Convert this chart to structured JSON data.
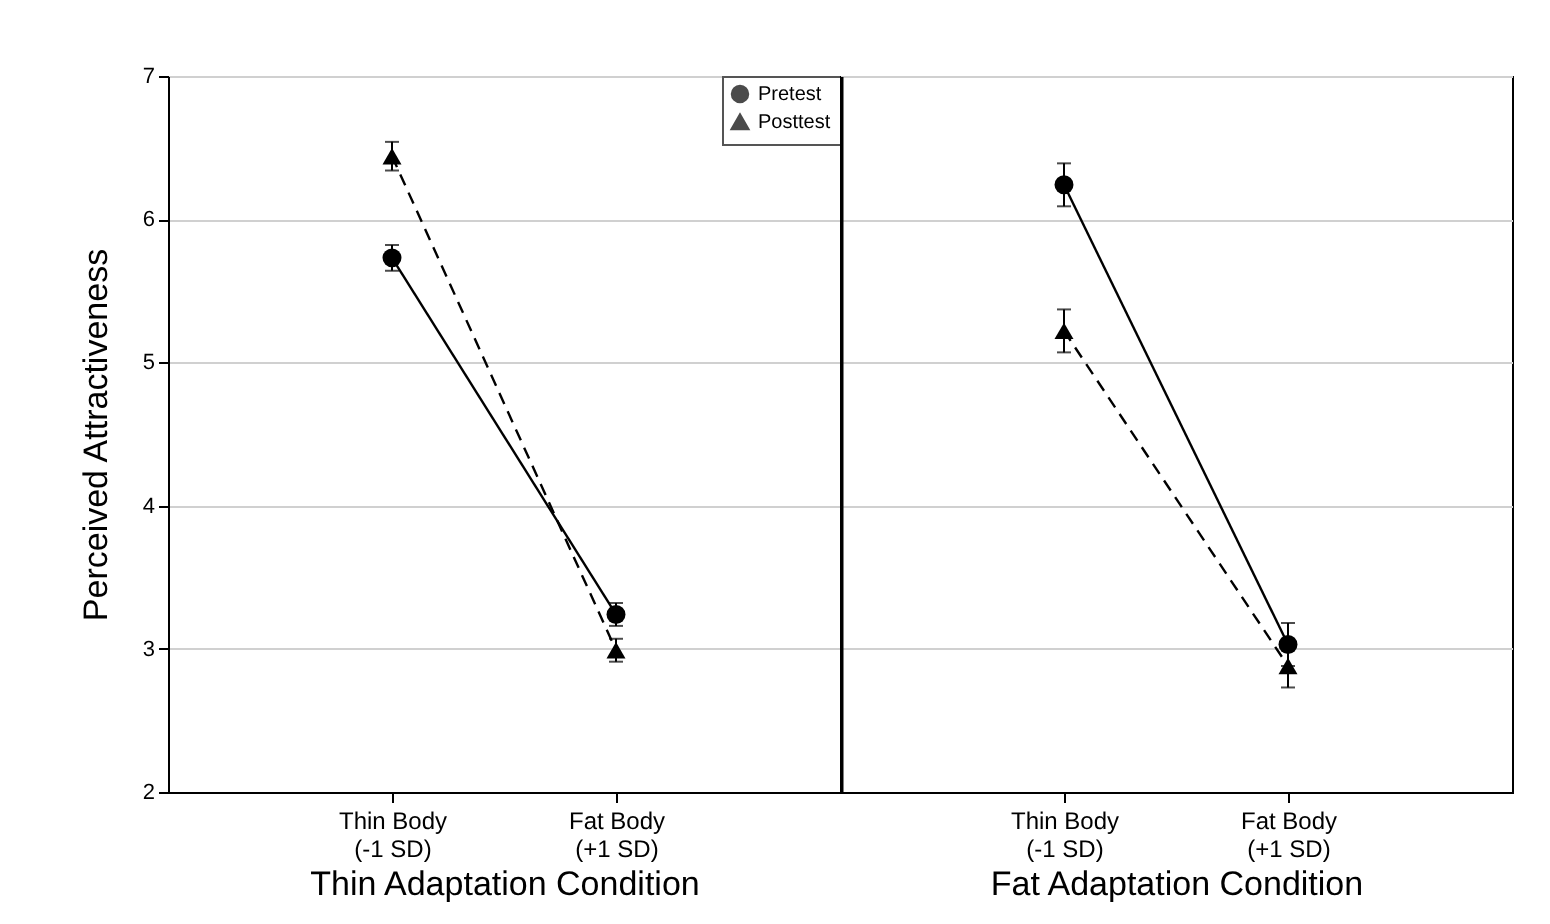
{
  "chart_data": [
    {
      "type": "line",
      "xlabel": "Thin Adaptation Condition",
      "ylabel": "Perceived Attractiveness",
      "categories": [
        "Thin Body\n(-1 SD)",
        "Fat Body\n(+1 SD)"
      ],
      "ylim": [
        2,
        7
      ],
      "yticks": [
        2,
        3,
        4,
        5,
        6,
        7
      ],
      "grid": "y",
      "legend": "top right",
      "series": [
        {
          "name": "Pretest",
          "color": "#000000",
          "values": [
            5.73,
            3.24
          ],
          "errors": [
            0.09,
            0.08
          ],
          "marker": "circle",
          "line_style": "solid"
        },
        {
          "name": "Posttest",
          "color": "#000000",
          "values": [
            6.44,
            2.99
          ],
          "errors": [
            0.1,
            0.08
          ],
          "marker": "triangle",
          "line_style": "dashed"
        }
      ]
    },
    {
      "type": "line",
      "xlabel": "Fat Adaptation Condition",
      "categories": [
        "Thin Body\n(-1 SD)",
        "Fat Body\n(+1 SD)"
      ],
      "ylim": [
        2,
        7
      ],
      "yticks": [
        2,
        3,
        4,
        5,
        6,
        7
      ],
      "grid": "y",
      "tick_labels": "x",
      "series": [
        {
          "color": "#000000",
          "values": [
            6.24,
            3.03
          ],
          "errors": [
            0.15,
            0.15
          ],
          "marker": "circle",
          "line_style": "solid"
        },
        {
          "color": "#000000",
          "values": [
            5.22,
            2.88
          ],
          "errors": [
            0.15,
            0.15
          ],
          "marker": "triangle",
          "line_style": "dashed"
        }
      ]
    }
  ]
}
